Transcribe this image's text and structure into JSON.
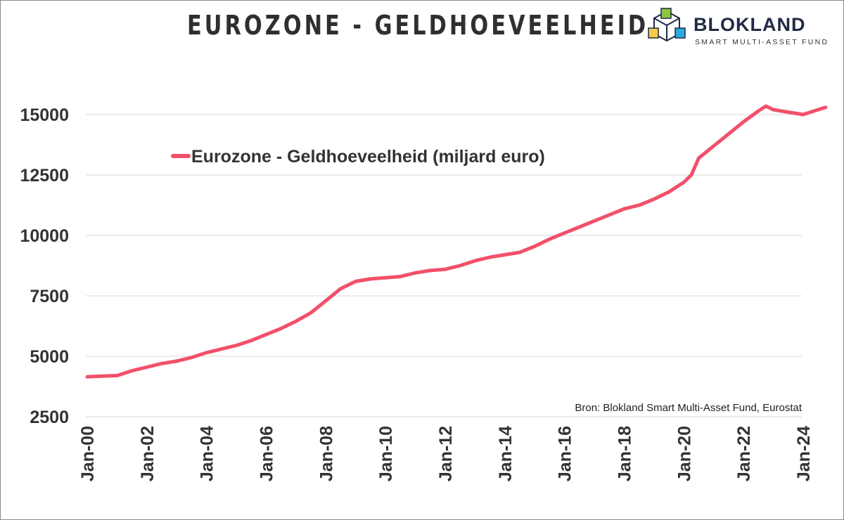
{
  "header": {
    "title": "EUROZONE - GELDHOEVEELHEID"
  },
  "logo": {
    "name": "BLOKLAND",
    "subtitle": "SMART MULTI-ASSET FUND",
    "icon": "cube-logo-icon"
  },
  "source": "Bron: Blokland Smart Multi-Asset Fund, Eurostat",
  "colors": {
    "line": "#f2506a",
    "grid": "#d9d9d9",
    "text": "#333333"
  },
  "chart_data": {
    "type": "line",
    "title": "EUROZONE - GELDHOEVEELHEID",
    "xlabel": "",
    "ylabel": "",
    "ylim": [
      2500,
      15000
    ],
    "xlim": [
      2000.0,
      2024.75
    ],
    "y_ticks": [
      2500,
      5000,
      7500,
      10000,
      12500,
      15000
    ],
    "x_ticks": [
      {
        "label": "Jan-00",
        "value": 2000
      },
      {
        "label": "Jan-02",
        "value": 2002
      },
      {
        "label": "Jan-04",
        "value": 2004
      },
      {
        "label": "Jan-06",
        "value": 2006
      },
      {
        "label": "Jan-08",
        "value": 2008
      },
      {
        "label": "Jan-10",
        "value": 2010
      },
      {
        "label": "Jan-12",
        "value": 2012
      },
      {
        "label": "Jan-14",
        "value": 2014
      },
      {
        "label": "Jan-16",
        "value": 2016
      },
      {
        "label": "Jan-18",
        "value": 2018
      },
      {
        "label": "Jan-20",
        "value": 2020
      },
      {
        "label": "Jan-22",
        "value": 2022
      },
      {
        "label": "Jan-24",
        "value": 2024
      }
    ],
    "grid": true,
    "legend_position": "top-left",
    "series": [
      {
        "name": "Eurozone - Geldhoeveelheid (miljard euro)",
        "x": [
          2000.0,
          2000.5,
          2001.0,
          2001.5,
          2002.0,
          2002.5,
          2003.0,
          2003.5,
          2004.0,
          2004.5,
          2005.0,
          2005.5,
          2006.0,
          2006.5,
          2007.0,
          2007.5,
          2008.0,
          2008.5,
          2009.0,
          2009.5,
          2010.0,
          2010.5,
          2011.0,
          2011.5,
          2012.0,
          2012.5,
          2013.0,
          2013.5,
          2014.0,
          2014.5,
          2015.0,
          2015.5,
          2016.0,
          2016.5,
          2017.0,
          2017.5,
          2018.0,
          2018.5,
          2019.0,
          2019.5,
          2020.0,
          2020.25,
          2020.5,
          2021.0,
          2021.5,
          2022.0,
          2022.5,
          2022.75,
          2023.0,
          2023.5,
          2024.0,
          2024.5,
          2024.75
        ],
        "values": [
          4150,
          4180,
          4200,
          4400,
          4550,
          4700,
          4800,
          4950,
          5150,
          5300,
          5450,
          5650,
          5900,
          6150,
          6450,
          6800,
          7300,
          7800,
          8100,
          8200,
          8250,
          8300,
          8450,
          8550,
          8600,
          8750,
          8950,
          9100,
          9200,
          9300,
          9550,
          9850,
          10100,
          10350,
          10600,
          10850,
          11100,
          11250,
          11500,
          11800,
          12200,
          12500,
          13200,
          13700,
          14200,
          14700,
          15150,
          15350,
          15200,
          15100,
          15000,
          15200,
          15300
        ]
      }
    ]
  }
}
